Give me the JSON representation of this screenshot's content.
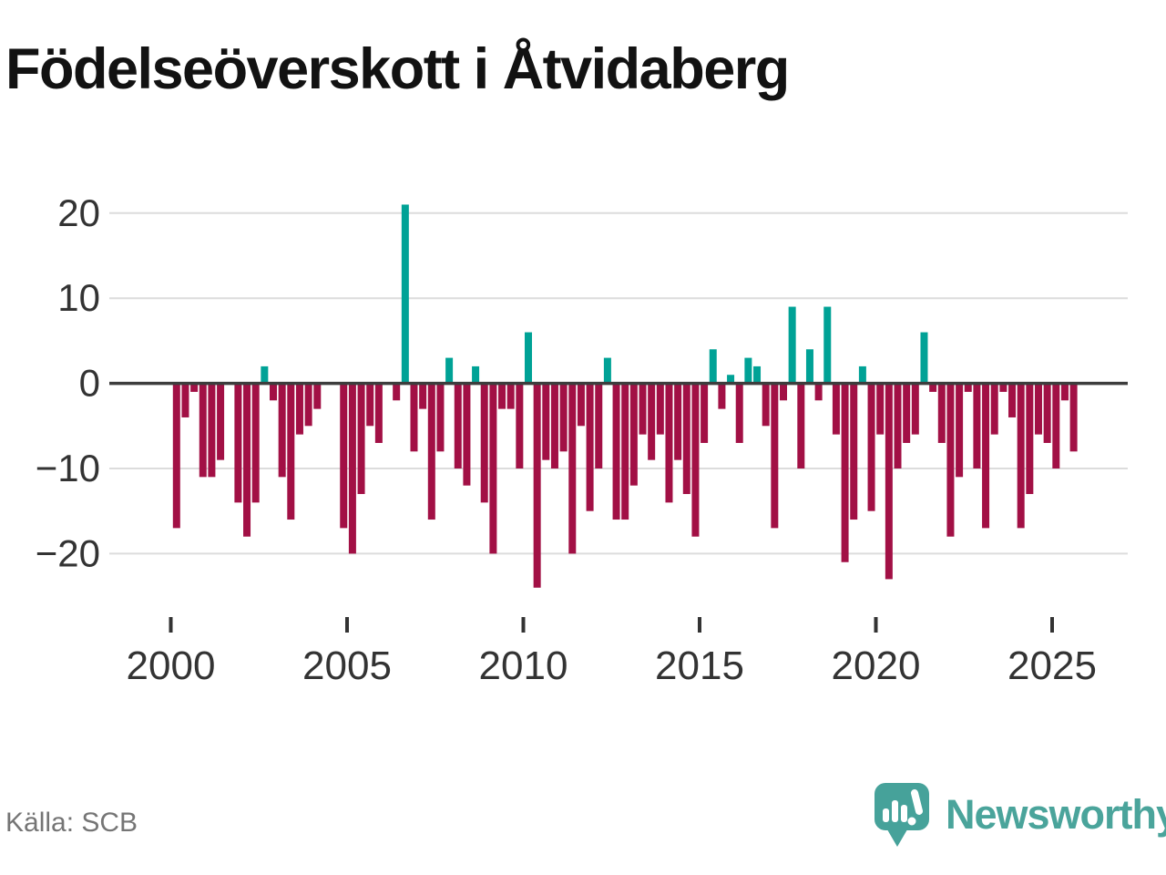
{
  "title": "Födelseöverskott i Åtvidaberg",
  "source": "Källa: SCB",
  "branding": {
    "name": "Newsworthy"
  },
  "chart_data": {
    "type": "bar",
    "title": "Födelseöverskott i Åtvidaberg",
    "frequency": "quarterly",
    "start": "2000Q1",
    "end": "2025Q3",
    "x_tick_labels": [
      "2000",
      "2005",
      "2010",
      "2015",
      "2020",
      "2025"
    ],
    "y_ticks": [
      20,
      10,
      0,
      -10,
      -20
    ],
    "y_tick_labels": [
      "20",
      "10",
      "0",
      "−10",
      "−20"
    ],
    "ylim": [
      -25,
      22
    ],
    "grid": true,
    "legend_position": "none",
    "colors": {
      "positive": "#00a296",
      "negative": "#a21045",
      "axis": "#3d3d3d",
      "gridline": "#dcdcdc",
      "tick_label": "#333333"
    },
    "values_by_year": {
      "2000": [
        -17,
        -4,
        -1,
        -11
      ],
      "2001": [
        -11,
        -9,
        0,
        -14
      ],
      "2002": [
        -18,
        -14,
        2,
        -2
      ],
      "2003": [
        -11,
        -16,
        -6,
        -5
      ],
      "2004": [
        -3,
        0,
        0,
        -17
      ],
      "2005": [
        -20,
        -13,
        -5,
        -7
      ],
      "2006": [
        0,
        -2,
        21,
        -8
      ],
      "2007": [
        -3,
        -16,
        -8,
        3
      ],
      "2008": [
        -10,
        -12,
        2,
        -14
      ],
      "2009": [
        -20,
        -3,
        -3,
        -10
      ],
      "2010": [
        6,
        -24,
        -9,
        -10
      ],
      "2011": [
        -8,
        -20,
        -5,
        -15
      ],
      "2012": [
        -10,
        3,
        -16,
        -16
      ],
      "2013": [
        -12,
        -6,
        -9,
        -6
      ],
      "2014": [
        -14,
        -9,
        -13,
        -18
      ],
      "2015": [
        -7,
        4,
        -3,
        1
      ],
      "2016": [
        -7,
        3,
        2,
        -5
      ],
      "2017": [
        -17,
        -2,
        9,
        -10
      ],
      "2018": [
        4,
        -2,
        9,
        -6
      ],
      "2019": [
        -21,
        -16,
        2,
        -15
      ],
      "2020": [
        -6,
        -23,
        -10,
        -7
      ],
      "2021": [
        -6,
        6,
        -1,
        -7
      ],
      "2022": [
        -18,
        -11,
        -1,
        -10
      ],
      "2023": [
        -17,
        -6,
        -1,
        -4
      ],
      "2024": [
        -17,
        -13,
        -6,
        -7
      ],
      "2025": [
        -10,
        -2,
        -8
      ]
    }
  }
}
